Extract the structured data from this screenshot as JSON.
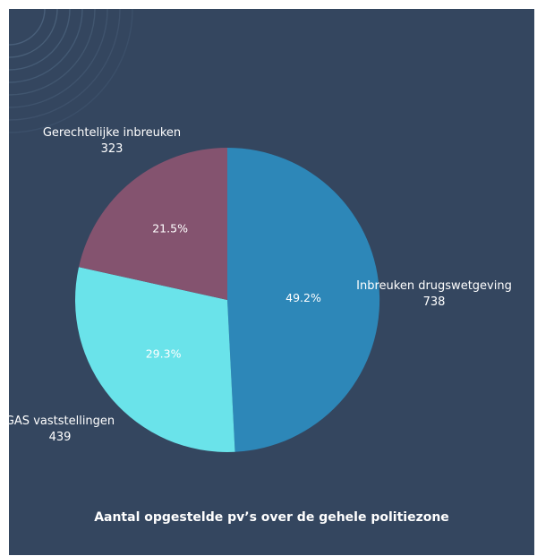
{
  "chart_data": {
    "type": "pie",
    "title": "Aantal opgestelde pv’s over de gehele politiezone",
    "slices": [
      {
        "name": "Inbreuken drugswetgeving",
        "value": 738,
        "percent_label": "49.2%",
        "color": "#2d87b8"
      },
      {
        "name": "GAS vaststellingen",
        "value": 439,
        "percent_label": "29.3%",
        "color": "#6ae3ea"
      },
      {
        "name": "Gerechtelijke inbreuken",
        "value": 323,
        "percent_label": "21.5%",
        "color": "#84536f"
      }
    ]
  },
  "colors": {
    "background": "#34465f",
    "decoration": "#5b7590"
  }
}
